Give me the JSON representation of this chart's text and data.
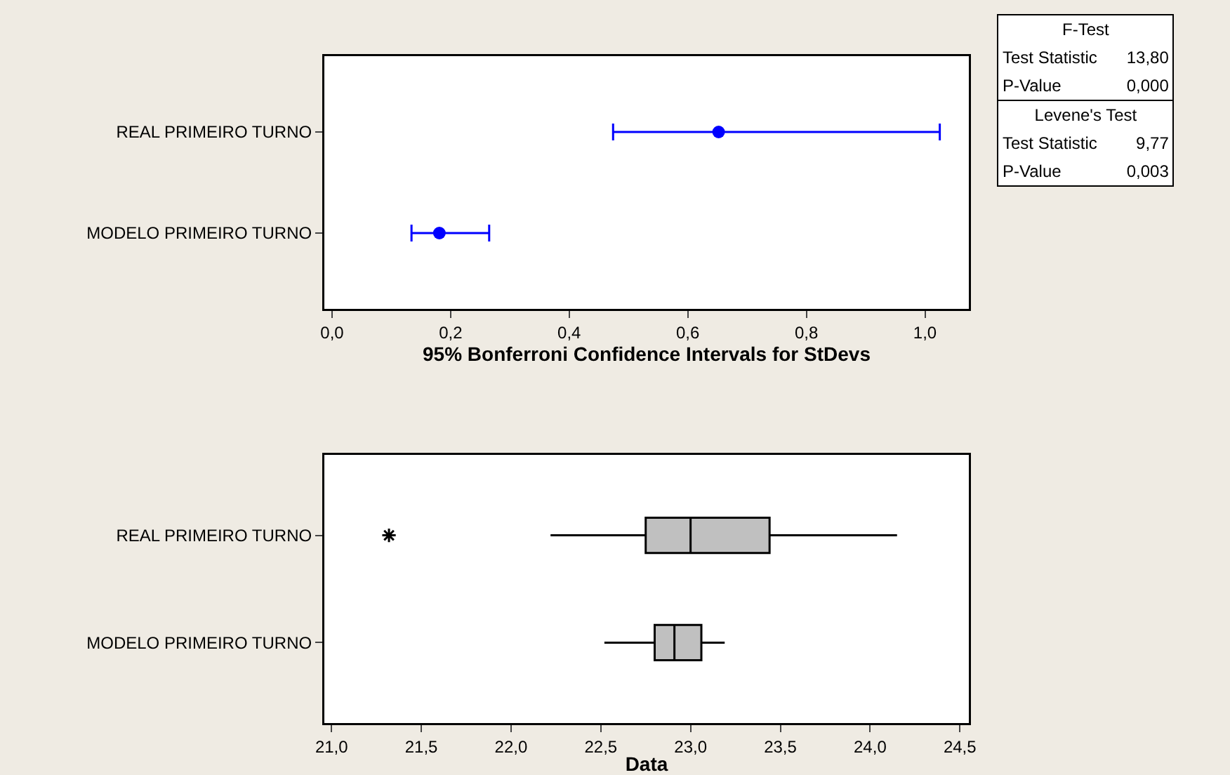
{
  "chart_data": [
    {
      "type": "scatter",
      "orientation": "horizontal",
      "categories": [
        "REAL PRIMEIRO TURNO",
        "MODELO PRIMEIRO TURNO"
      ],
      "values": [
        0.652,
        0.181
      ],
      "errors": [
        [
          0.474,
          1.025
        ],
        [
          0.134,
          0.265
        ]
      ],
      "color": "#0000ff",
      "marker": "circle",
      "xlim": [
        -0.013,
        1.074
      ],
      "xticks": [
        {
          "value": 0,
          "label": "0,0"
        },
        {
          "value": 0.2,
          "label": "0,2"
        },
        {
          "value": 0.4,
          "label": "0,4"
        },
        {
          "value": 0.6,
          "label": "0,6"
        },
        {
          "value": 0.8,
          "label": "0,8"
        },
        {
          "value": 1,
          "label": "1,0"
        }
      ],
      "xlabel": "95% Bonferroni Confidence Intervals for StDevs"
    },
    {
      "type": "box",
      "orientation": "horizontal",
      "categories": [
        "REAL PRIMEIRO TURNO",
        "MODELO PRIMEIRO TURNO"
      ],
      "color": "#c0c0c0",
      "boxes": [
        {
          "low": 22.22,
          "q1": 22.75,
          "median": 23.0,
          "q3": 23.44,
          "high": 24.15,
          "outliers": [
            21.32
          ]
        },
        {
          "low": 22.52,
          "q1": 22.8,
          "median": 22.91,
          "q3": 23.06,
          "high": 23.19
        }
      ],
      "xlim": [
        20.96,
        24.55
      ],
      "xticks": [
        {
          "value": 21,
          "label": "21,0"
        },
        {
          "value": 21.5,
          "label": "21,5"
        },
        {
          "value": 22,
          "label": "22,0"
        },
        {
          "value": 22.5,
          "label": "22,5"
        },
        {
          "value": 23,
          "label": "23,0"
        },
        {
          "value": 23.5,
          "label": "23,5"
        },
        {
          "value": 24,
          "label": "24,0"
        },
        {
          "value": 24.5,
          "label": "24,5"
        }
      ],
      "xlabel": "Data"
    },
    {
      "type": "other",
      "annotations": [
        "F-Test",
        "Test Statistic",
        "13,80",
        "P-Value",
        "0,000",
        "Levene's Test",
        "Test Statistic",
        "9,77",
        "P-Value",
        "0,003"
      ]
    }
  ]
}
